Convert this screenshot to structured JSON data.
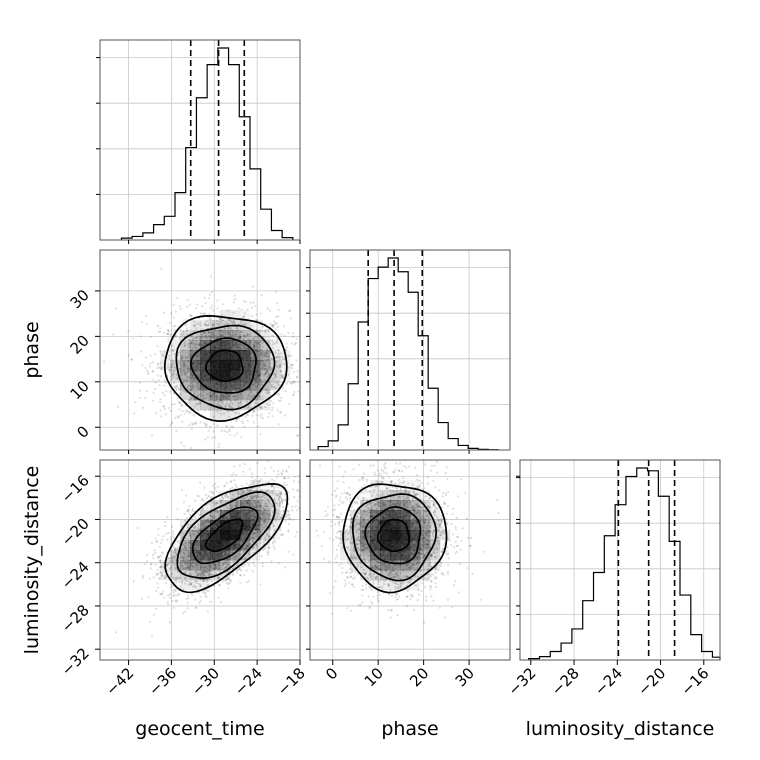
{
  "chart_data": {
    "type": "corner",
    "parameters": [
      "geocent_time",
      "phase",
      "luminosity_distance"
    ],
    "panels": {
      "geocent_time": {
        "range": [
          -46,
          -18
        ],
        "ticks": [
          -42,
          -36,
          -30,
          -24,
          -18
        ],
        "tick_labels": [
          "−42",
          "−36",
          "−30",
          "−24",
          "−18"
        ],
        "quantiles": [
          -33.3,
          -29.4,
          -25.8
        ],
        "hist_bin_edges": [
          -43,
          -41.5,
          -40,
          -38.5,
          -37,
          -35.5,
          -34,
          -32.5,
          -31,
          -29.5,
          -28,
          -26.5,
          -25,
          -23.5,
          -22,
          -20.5,
          -19
        ],
        "hist_counts": [
          0.8,
          1.5,
          3.0,
          6.5,
          10.0,
          20.0,
          39.0,
          60.0,
          74.0,
          81.0,
          74.0,
          52.0,
          30.0,
          13.0,
          4.0,
          1.0
        ]
      },
      "phase": {
        "range": [
          -5,
          39
        ],
        "ticks": [
          0,
          10,
          20,
          30
        ],
        "tick_labels": [
          "0",
          "10",
          "20",
          "30"
        ],
        "quantiles": [
          7.8,
          13.5,
          19.7
        ],
        "hist_bin_edges": [
          -3.2,
          -1,
          1.2,
          3.4,
          5.6,
          7.8,
          10,
          12.2,
          14.4,
          16.6,
          18.8,
          21,
          23.2,
          25.4,
          27.6,
          29.8,
          32,
          34.2,
          36.4
        ],
        "hist_counts": [
          1.5,
          4.0,
          11.0,
          29.0,
          56.0,
          75.0,
          80.0,
          84.0,
          78.0,
          69.0,
          50.0,
          27.0,
          12.0,
          5.0,
          2.0,
          0.7,
          0.3,
          0.1
        ]
      },
      "luminosity_distance": {
        "range": [
          -33,
          -14.5
        ],
        "ticks": [
          -32,
          -28,
          -24,
          -20,
          -16
        ],
        "tick_labels": [
          "−32",
          "−28",
          "−24",
          "−20",
          "−16"
        ],
        "quantiles": [
          -23.9,
          -21.1,
          -18.7
        ],
        "hist_bin_edges": [
          -32.2,
          -31.2,
          -30.2,
          -29.2,
          -28.2,
          -27.2,
          -26.2,
          -25.2,
          -24.2,
          -23.2,
          -22.2,
          -21.2,
          -20.2,
          -19.2,
          -18.2,
          -17.2,
          -16.2,
          -15.2,
          -14.5
        ],
        "hist_counts": [
          0.5,
          1.2,
          3.0,
          6.0,
          11.0,
          21.0,
          31.0,
          44.0,
          55.0,
          65.0,
          68.0,
          67.0,
          58.0,
          42.0,
          23.0,
          9.0,
          3.0,
          1.0
        ]
      }
    },
    "pairs": [
      {
        "x": "geocent_time",
        "y": "phase",
        "center": [
          -28.5,
          13.5
        ],
        "sigma": [
          4.5,
          6.0
        ],
        "correlation": 0.0
      },
      {
        "x": "geocent_time",
        "y": "luminosity_distance",
        "center": [
          -28.5,
          -21.5
        ],
        "sigma": [
          4.5,
          2.6
        ],
        "correlation": 0.62
      },
      {
        "x": "phase",
        "y": "luminosity_distance",
        "center": [
          13.5,
          -21.5
        ],
        "sigma": [
          6.0,
          2.6
        ],
        "correlation": 0.0
      }
    ],
    "grid": true
  }
}
